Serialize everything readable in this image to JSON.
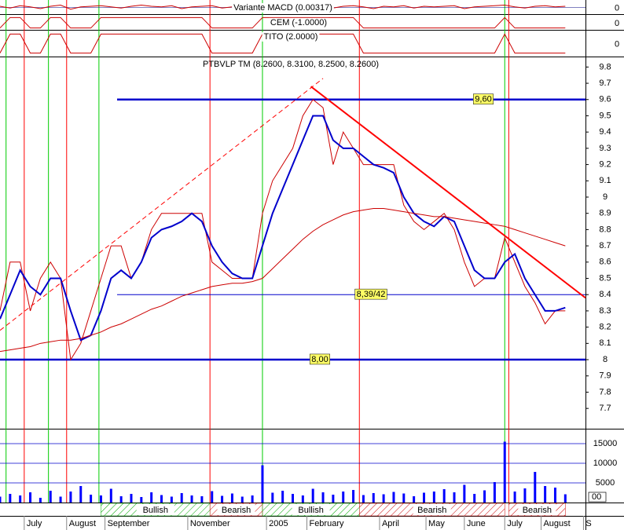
{
  "chart_data": {
    "type": "line",
    "title": "PTBVLP TM (8.2600, 8.3100, 8.2500, 8.2600)",
    "xlim": [
      0,
      290
    ],
    "xticks": [
      {
        "value": 12,
        "label": "July"
      },
      {
        "value": 33,
        "label": "August"
      },
      {
        "value": 52,
        "label": "September"
      },
      {
        "value": 93,
        "label": "November"
      },
      {
        "value": 132,
        "label": "2005"
      },
      {
        "value": 152,
        "label": "February"
      },
      {
        "value": 188,
        "label": "April"
      },
      {
        "value": 211,
        "label": "May"
      },
      {
        "value": 230,
        "label": "June"
      },
      {
        "value": 250,
        "label": "July"
      },
      {
        "value": 268,
        "label": "August"
      },
      {
        "value": 289,
        "label": "S"
      }
    ],
    "ylim": [
      7.58,
      9.85
    ],
    "yticks": [
      7.7,
      7.8,
      7.9,
      8.0,
      8.1,
      8.2,
      8.3,
      8.4,
      8.5,
      8.6,
      8.7,
      8.8,
      8.9,
      9.0,
      9.1,
      9.2,
      9.3,
      9.4,
      9.5,
      9.6,
      9.7,
      9.8
    ],
    "x": [
      0,
      5,
      10,
      15,
      20,
      25,
      30,
      35,
      40,
      45,
      50,
      55,
      60,
      65,
      70,
      75,
      80,
      85,
      90,
      95,
      100,
      105,
      110,
      115,
      120,
      125,
      130,
      135,
      140,
      145,
      150,
      155,
      160,
      165,
      170,
      175,
      180,
      185,
      190,
      195,
      200,
      205,
      210,
      215,
      220,
      225,
      230,
      235,
      240,
      245,
      250,
      255,
      260,
      265,
      270,
      275,
      280
    ],
    "series": [
      {
        "color": "#cc0000",
        "values": [
          8.3,
          8.6,
          8.6,
          8.3,
          8.5,
          8.6,
          8.5,
          8.0,
          8.1,
          8.3,
          8.5,
          8.7,
          8.7,
          8.5,
          8.6,
          8.8,
          8.9,
          8.9,
          8.9,
          8.9,
          8.9,
          8.6,
          8.55,
          8.5,
          8.5,
          8.5,
          8.9,
          9.1,
          9.2,
          9.3,
          9.5,
          9.6,
          9.55,
          9.2,
          9.4,
          9.3,
          9.2,
          9.2,
          9.2,
          9.2,
          8.95,
          8.85,
          8.8,
          8.85,
          8.9,
          8.8,
          8.6,
          8.45,
          8.5,
          8.5,
          8.75,
          8.6,
          8.45,
          8.35,
          8.22,
          8.3,
          8.3
        ]
      },
      {
        "color": "#0000cc",
        "values": [
          8.25,
          8.4,
          8.55,
          8.45,
          8.4,
          8.5,
          8.5,
          8.3,
          8.12,
          8.15,
          8.3,
          8.5,
          8.55,
          8.5,
          8.6,
          8.75,
          8.8,
          8.82,
          8.85,
          8.9,
          8.85,
          8.7,
          8.6,
          8.53,
          8.5,
          8.5,
          8.7,
          8.9,
          9.05,
          9.2,
          9.35,
          9.5,
          9.5,
          9.35,
          9.3,
          9.3,
          9.25,
          9.2,
          9.18,
          9.15,
          9.0,
          8.9,
          8.85,
          8.82,
          8.88,
          8.85,
          8.7,
          8.55,
          8.5,
          8.5,
          8.6,
          8.65,
          8.5,
          8.4,
          8.3,
          8.3,
          8.32
        ]
      },
      {
        "color": "#cc0000",
        "values": [
          8.05,
          8.06,
          8.07,
          8.08,
          8.1,
          8.11,
          8.12,
          8.12,
          8.13,
          8.15,
          8.17,
          8.2,
          8.22,
          8.25,
          8.28,
          8.31,
          8.33,
          8.36,
          8.39,
          8.41,
          8.43,
          8.45,
          8.46,
          8.47,
          8.47,
          8.48,
          8.5,
          8.56,
          8.62,
          8.68,
          8.74,
          8.79,
          8.83,
          8.86,
          8.89,
          8.91,
          8.92,
          8.93,
          8.93,
          8.92,
          8.91,
          8.9,
          8.89,
          8.88,
          8.88,
          8.87,
          8.86,
          8.85,
          8.84,
          8.83,
          8.82,
          8.8,
          8.78,
          8.76,
          8.74,
          8.72,
          8.7
        ]
      }
    ],
    "levels": [
      {
        "value": 9.6,
        "label": "9,60",
        "from": 58
      },
      {
        "value": 8.4,
        "label": "8,39/42",
        "from": 58
      },
      {
        "value": 8.0,
        "label": "8,00",
        "from": 0
      }
    ],
    "trendlines": [
      {
        "x": [
          154,
          290
        ],
        "y": [
          9.68,
          8.38
        ],
        "color": "#ff0000",
        "dashed": false
      },
      {
        "x": [
          0,
          160
        ],
        "y": [
          8.18,
          9.73
        ],
        "color": "#ff0000",
        "dashed": true
      }
    ],
    "signals": [
      {
        "color": "#00cc00",
        "x": [
          3,
          24,
          49,
          130,
          250
        ]
      },
      {
        "color": "#ff0000",
        "x": [
          12,
          33,
          104,
          178,
          252
        ]
      }
    ],
    "panels": [
      {
        "title": "Variante MACD (0.00317)",
        "ylim": [
          -0.1,
          0.1
        ],
        "yticks": [
          0
        ],
        "color": "#cc0000",
        "values": [
          0.02,
          -0.01,
          0.03,
          0.01,
          -0.02,
          0.02,
          0.04,
          -0.03,
          0.01,
          0.02,
          0.03,
          0.01,
          -0.01,
          0.02,
          0.04,
          0.02,
          0.01,
          0.03,
          -0.02,
          0.01,
          0.02,
          0.03,
          -0.01,
          0.01,
          0.02,
          -0.02,
          0.05,
          0.03,
          0.02,
          0.04,
          0.03,
          0.01,
          0.02,
          -0.01,
          0.02,
          0.03,
          0.01,
          -0.02,
          0.02,
          0.01,
          0.03,
          -0.01,
          0.02,
          0.01,
          0.02,
          0.03,
          -0.02,
          0.01,
          0.02,
          0.03,
          0.04,
          0.01,
          -0.01,
          0.02,
          0.03,
          0.01,
          0.02
        ]
      },
      {
        "title": "CEM (-1.0000)",
        "ylim": [
          -1.2,
          1.2
        ],
        "yticks": [
          0
        ],
        "color": "#cc0000",
        "values": [
          -1,
          1,
          1,
          -1,
          -1,
          1,
          1,
          -1,
          -1,
          -1,
          1,
          1,
          1,
          1,
          1,
          1,
          1,
          1,
          1,
          1,
          1,
          -1,
          -1,
          -1,
          -1,
          -1,
          1,
          1,
          1,
          1,
          1,
          1,
          1,
          1,
          1,
          1,
          -1,
          -1,
          -1,
          -1,
          -1,
          -1,
          -1,
          -1,
          -1,
          -1,
          -1,
          -1,
          -1,
          -1,
          1,
          -1,
          -1,
          -1,
          -1,
          -1,
          -1
        ]
      },
      {
        "title": "TITO (2.0000)",
        "ylim": [
          -1.2,
          1.2
        ],
        "yticks": [
          0
        ],
        "color": "#cc0000",
        "values": [
          -1,
          1,
          1,
          -1,
          -1,
          1,
          1,
          -1,
          -1,
          -1,
          1,
          1,
          1,
          1,
          1,
          1,
          1,
          1,
          1,
          1,
          1,
          -1,
          -1,
          -1,
          -1,
          -1,
          1,
          1,
          1,
          1,
          1,
          1,
          1,
          1,
          1,
          1,
          -1,
          -1,
          -1,
          -1,
          -1,
          -1,
          -1,
          -1,
          -1,
          -1,
          -1,
          -1,
          -1,
          -1,
          1,
          -1,
          -1,
          -1,
          -1,
          -1,
          -1
        ]
      }
    ],
    "volume": {
      "ylim": [
        0,
        18400
      ],
      "yticks": [
        5000,
        10000,
        15000
      ],
      "color": "#0000ff",
      "corner_label": "00",
      "values": [
        1500,
        2200,
        1800,
        2600,
        1200,
        3000,
        1500,
        2800,
        4200,
        2000,
        1800,
        3500,
        1600,
        2200,
        1400,
        2600,
        1900,
        1500,
        2400,
        1800,
        1600,
        2900,
        1700,
        2300,
        1500,
        1800,
        9500,
        2500,
        3000,
        2200,
        1800,
        3500,
        2600,
        2000,
        2800,
        3200,
        1900,
        2400,
        2100,
        2700,
        2300,
        1600,
        2500,
        2800,
        3400,
        2600,
        4500,
        2200,
        3100,
        5200,
        15500,
        2800,
        3600,
        7800,
        4200,
        3800,
        2100
      ]
    },
    "bands": [
      {
        "label": "Bullish",
        "from": 50,
        "to": 104,
        "color": "#00aa00"
      },
      {
        "label": "Bearish",
        "from": 104,
        "to": 130,
        "color": "#cc0000"
      },
      {
        "label": "Bullish",
        "from": 130,
        "to": 178,
        "color": "#00aa00"
      },
      {
        "label": "Bearish",
        "from": 178,
        "to": 250,
        "color": "#cc0000"
      },
      {
        "label": "Bearish",
        "from": 252,
        "to": 280,
        "color": "#cc0000"
      }
    ]
  }
}
